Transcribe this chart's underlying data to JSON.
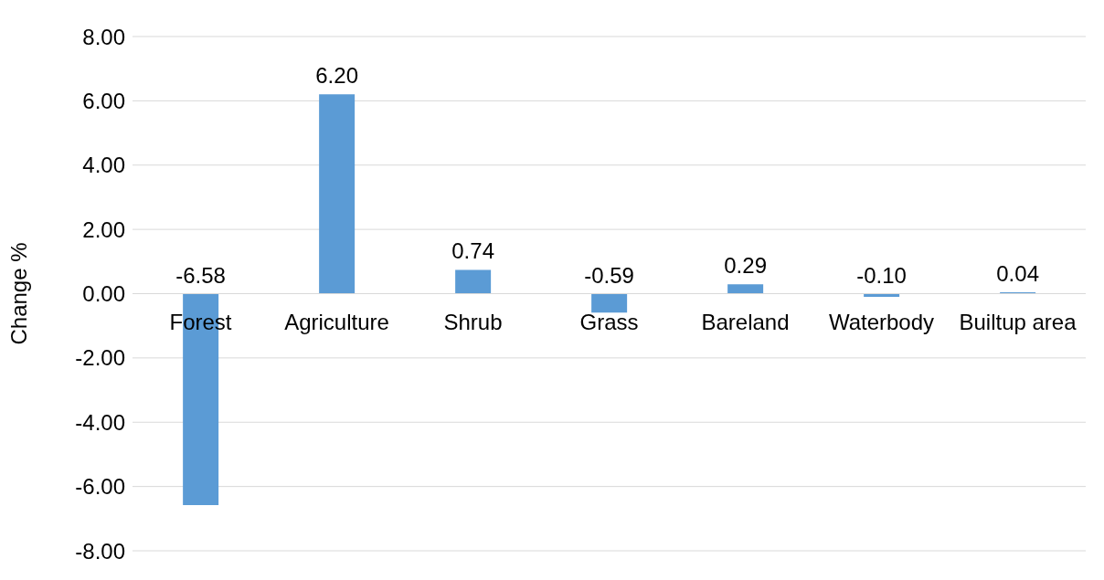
{
  "chart_data": {
    "type": "bar",
    "ylabel": "Change %",
    "categories": [
      "Forest",
      "Agriculture",
      "Shrub",
      "Grass",
      "Bareland",
      "Waterbody",
      "Builtup area"
    ],
    "values": [
      -6.58,
      6.2,
      0.74,
      -0.59,
      0.29,
      -0.1,
      0.04
    ],
    "value_labels": [
      "-6.58",
      "6.20",
      "0.74",
      "-0.59",
      "0.29",
      "-0.10",
      "0.04"
    ],
    "color": "#5b9bd5",
    "ylim": [
      -8,
      8
    ],
    "yticks": [
      {
        "value": -8,
        "label": "-8.00"
      },
      {
        "value": -6,
        "label": "-6.00"
      },
      {
        "value": -4,
        "label": "-4.00"
      },
      {
        "value": -2,
        "label": "-2.00"
      },
      {
        "value": 0,
        "label": "0.00"
      },
      {
        "value": 2,
        "label": "2.00"
      },
      {
        "value": 4,
        "label": "4.00"
      },
      {
        "value": 6,
        "label": "6.00"
      },
      {
        "value": 8,
        "label": "8.00"
      }
    ],
    "grid": "y",
    "legend": false
  }
}
